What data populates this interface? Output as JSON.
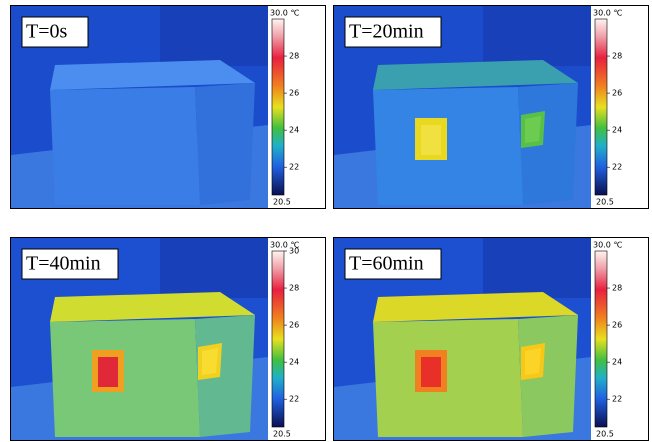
{
  "panels": [
    {
      "label": "T=0s",
      "scale_max": "30.0 ℃",
      "scale_min": "20.5",
      "ticks": [
        28,
        26,
        24,
        22
      ]
    },
    {
      "label": "T=20min",
      "scale_max": "30.0 ℃",
      "scale_min": "20.5",
      "ticks": [
        28,
        26,
        24,
        22
      ]
    },
    {
      "label": "T=40min",
      "scale_max": "30.0 ℃",
      "scale_min": "20.5",
      "ticks": [
        30,
        28,
        26,
        24,
        22
      ]
    },
    {
      "label": "T=60min",
      "scale_max": "30.0 ℃",
      "scale_min": "20.5",
      "ticks": [
        28,
        26,
        24,
        22
      ]
    }
  ]
}
